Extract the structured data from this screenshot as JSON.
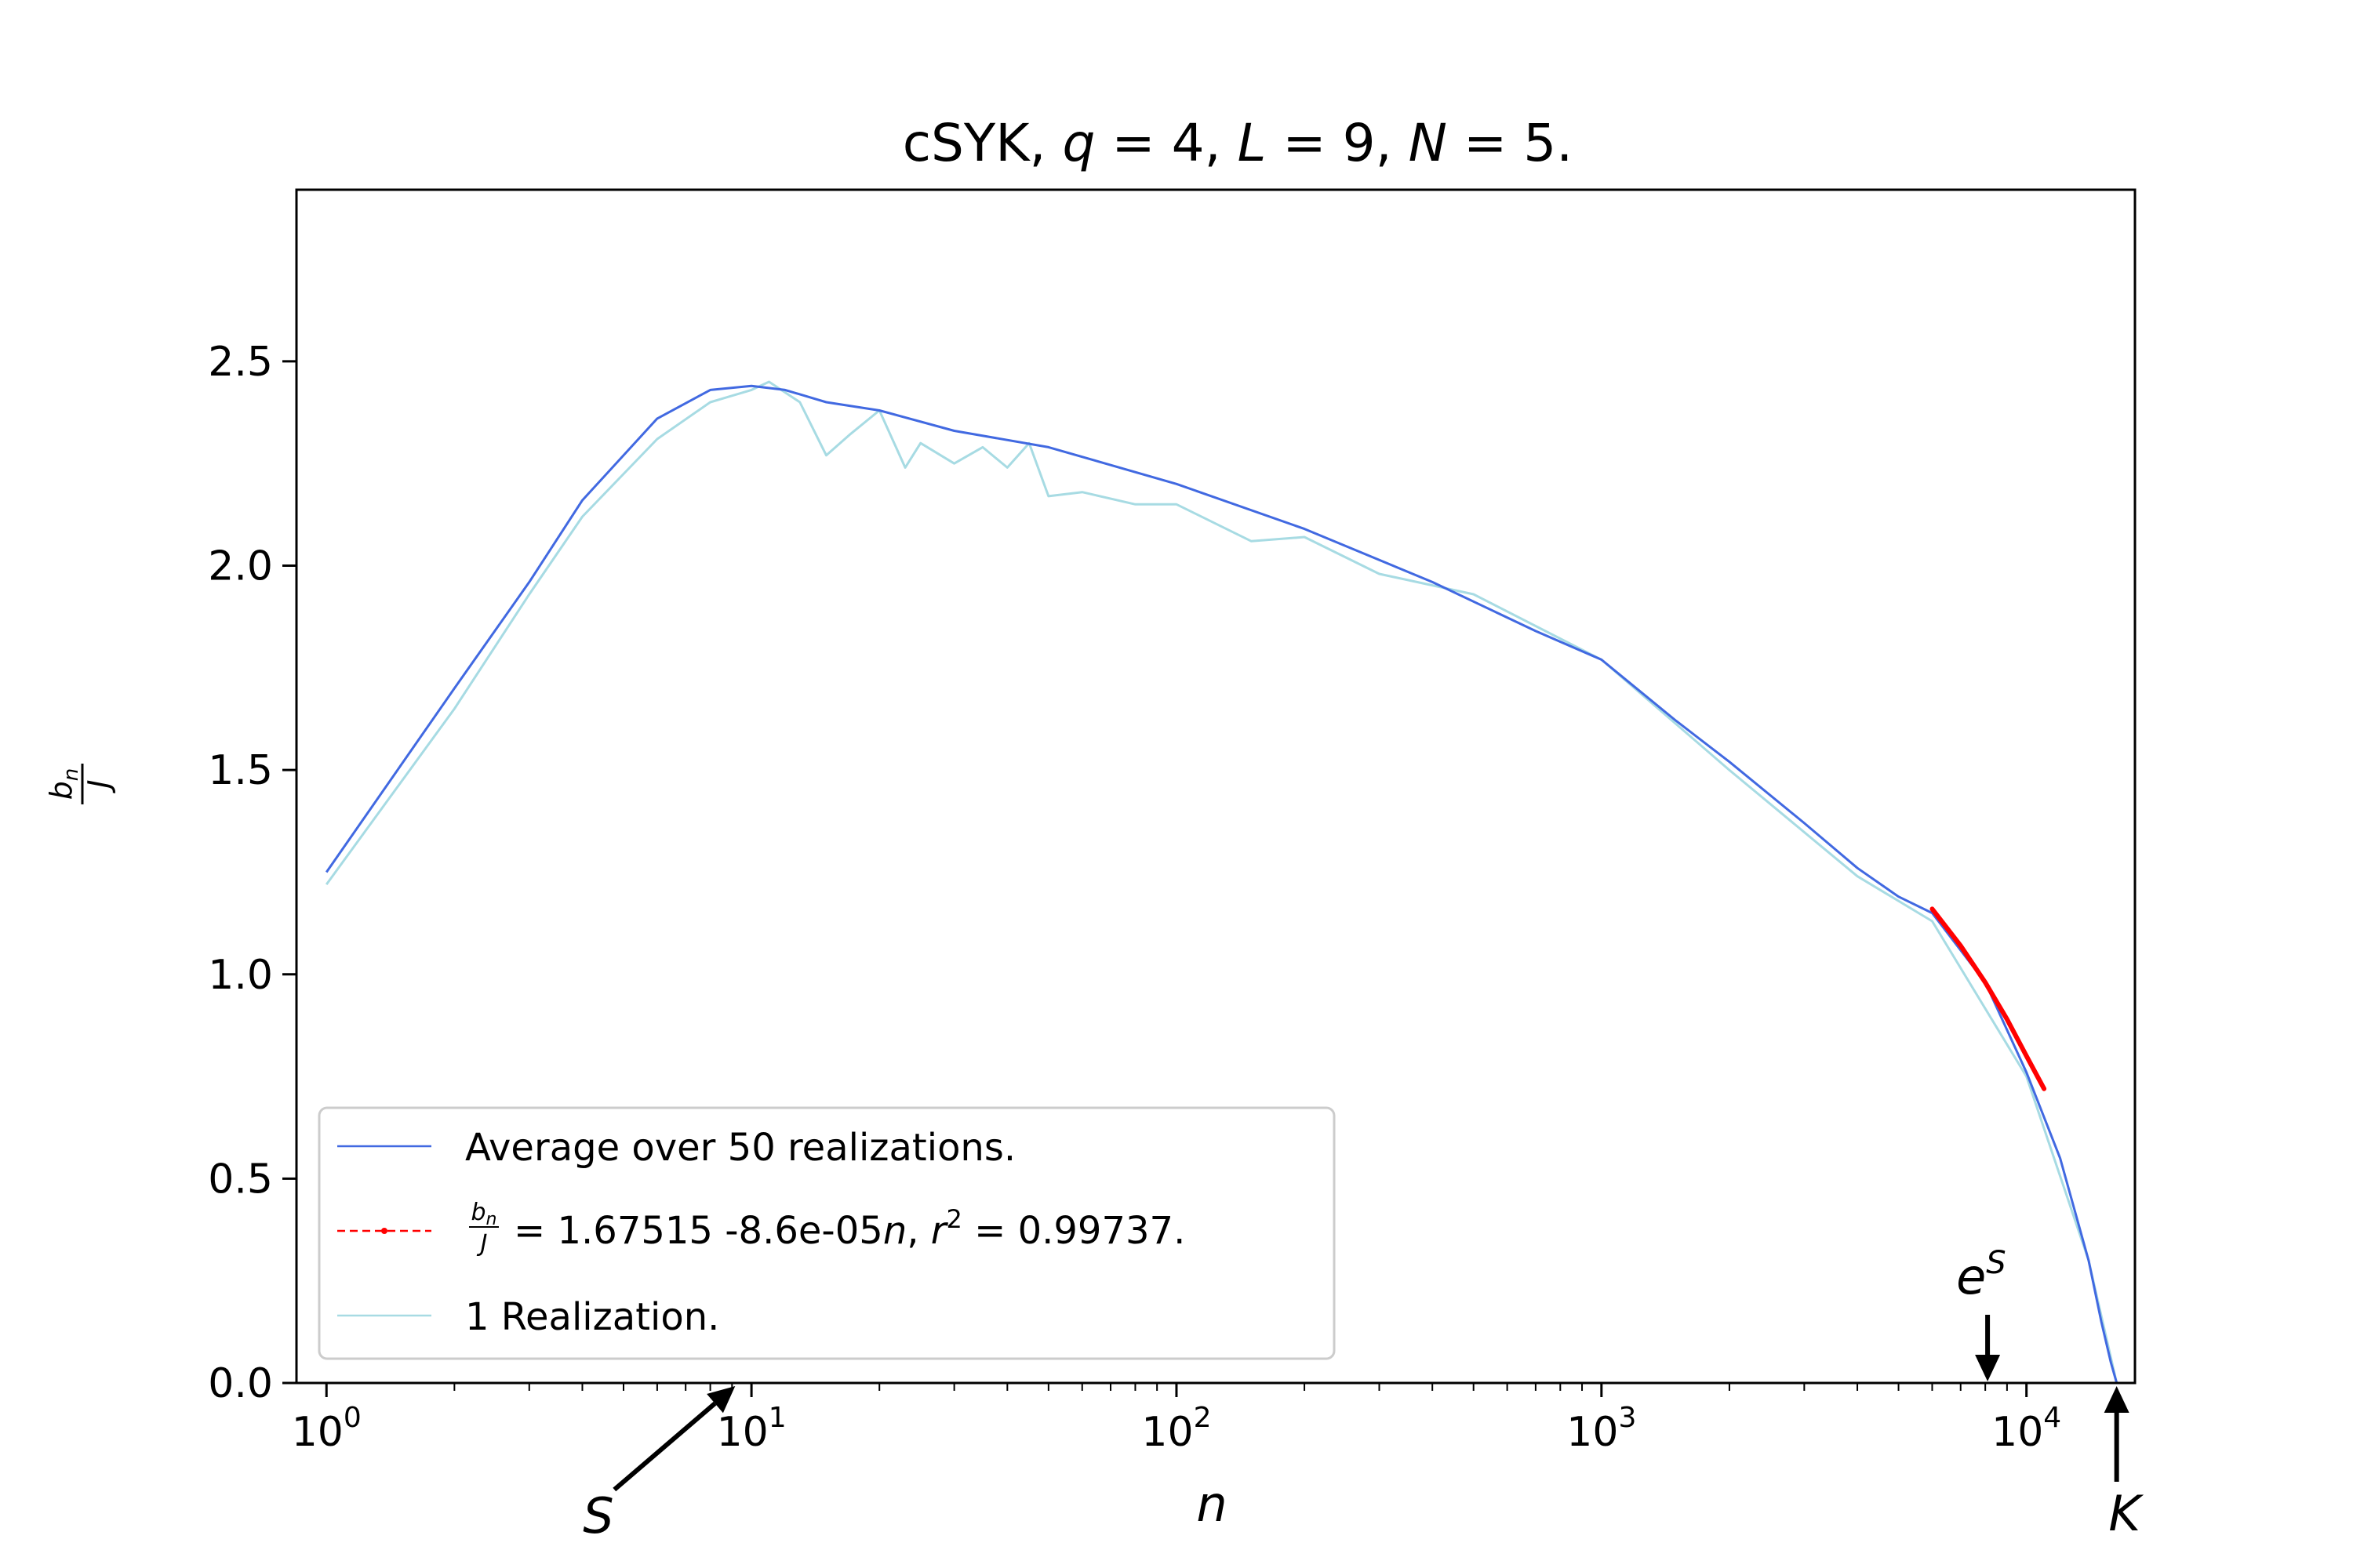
{
  "chart_data": {
    "type": "line",
    "title": "cSYK, q = 4, L = 9, N = 5.",
    "xlabel": "n",
    "ylabel": "b_n / J",
    "xscale": "log",
    "xlim": [
      0.85,
      18000
    ],
    "ylim": [
      0,
      2.92
    ],
    "grid": false,
    "legend_position": "lower-left",
    "x_ticks": [
      {
        "value": 1,
        "label": "10^0"
      },
      {
        "value": 10,
        "label": "10^1"
      },
      {
        "value": 100,
        "label": "10^2"
      },
      {
        "value": 1000,
        "label": "10^3"
      },
      {
        "value": 10000,
        "label": "10^4"
      }
    ],
    "y_ticks": [
      0.0,
      0.5,
      1.0,
      1.5,
      2.0,
      2.5
    ],
    "series": [
      {
        "name": "Average over 50 realizations.",
        "color": "#4169e1",
        "x": [
          1,
          2,
          3,
          4,
          6,
          8,
          10,
          12,
          15,
          20,
          30,
          50,
          100,
          200,
          400,
          700,
          1000,
          1500,
          2000,
          3000,
          4000,
          5000,
          6000,
          8000,
          10000,
          12000,
          14000,
          15000,
          15800,
          16300
        ],
        "y": [
          1.25,
          1.7,
          1.96,
          2.16,
          2.36,
          2.43,
          2.44,
          2.43,
          2.4,
          2.38,
          2.33,
          2.29,
          2.2,
          2.09,
          1.96,
          1.84,
          1.77,
          1.62,
          1.52,
          1.37,
          1.26,
          1.19,
          1.15,
          0.98,
          0.76,
          0.55,
          0.3,
          0.15,
          0.05,
          0.0
        ]
      },
      {
        "name": "1 Realization.",
        "color": "#a7dbe3",
        "x": [
          1,
          2,
          3,
          4,
          6,
          8,
          10,
          11,
          13,
          15,
          17,
          20,
          23,
          25,
          30,
          35,
          40,
          45,
          50,
          60,
          80,
          100,
          150,
          200,
          300,
          500,
          1000,
          2000,
          4000,
          6000,
          10000,
          14000,
          16300
        ],
        "y": [
          1.22,
          1.65,
          1.93,
          2.12,
          2.31,
          2.4,
          2.43,
          2.45,
          2.4,
          2.27,
          2.32,
          2.38,
          2.24,
          2.3,
          2.25,
          2.29,
          2.24,
          2.3,
          2.17,
          2.18,
          2.15,
          2.15,
          2.06,
          2.07,
          1.98,
          1.93,
          1.77,
          1.5,
          1.24,
          1.13,
          0.75,
          0.3,
          0.0
        ]
      }
    ],
    "fit": {
      "name": "fit",
      "label_prefix": "= 1.67515 -8.6e-05",
      "label_n": "n",
      "label_mid": ", ",
      "label_r": "r",
      "label_exp": "2",
      "label_suffix": " = 0.99737.",
      "color": "#ff0000",
      "x": [
        6000,
        7000,
        8000,
        9000,
        10000,
        11000
      ],
      "y": [
        1.16,
        1.07,
        0.98,
        0.89,
        0.8,
        0.72
      ]
    },
    "annotations": [
      {
        "text": "S",
        "at_x": 9,
        "at_y": 0
      },
      {
        "text": "e",
        "sup": "S",
        "at_x": 8100,
        "at_y": 0
      },
      {
        "text": "K",
        "at_x": 16300,
        "at_y": 0
      }
    ],
    "title_parts": {
      "a": "cSYK, ",
      "q": "q",
      "b": " = 4, ",
      "L": "L",
      "c": " = 9, ",
      "N": "N",
      "d": " = 5."
    },
    "ylabel_parts": {
      "num": "b",
      "sub": "n",
      "den": "J"
    }
  }
}
